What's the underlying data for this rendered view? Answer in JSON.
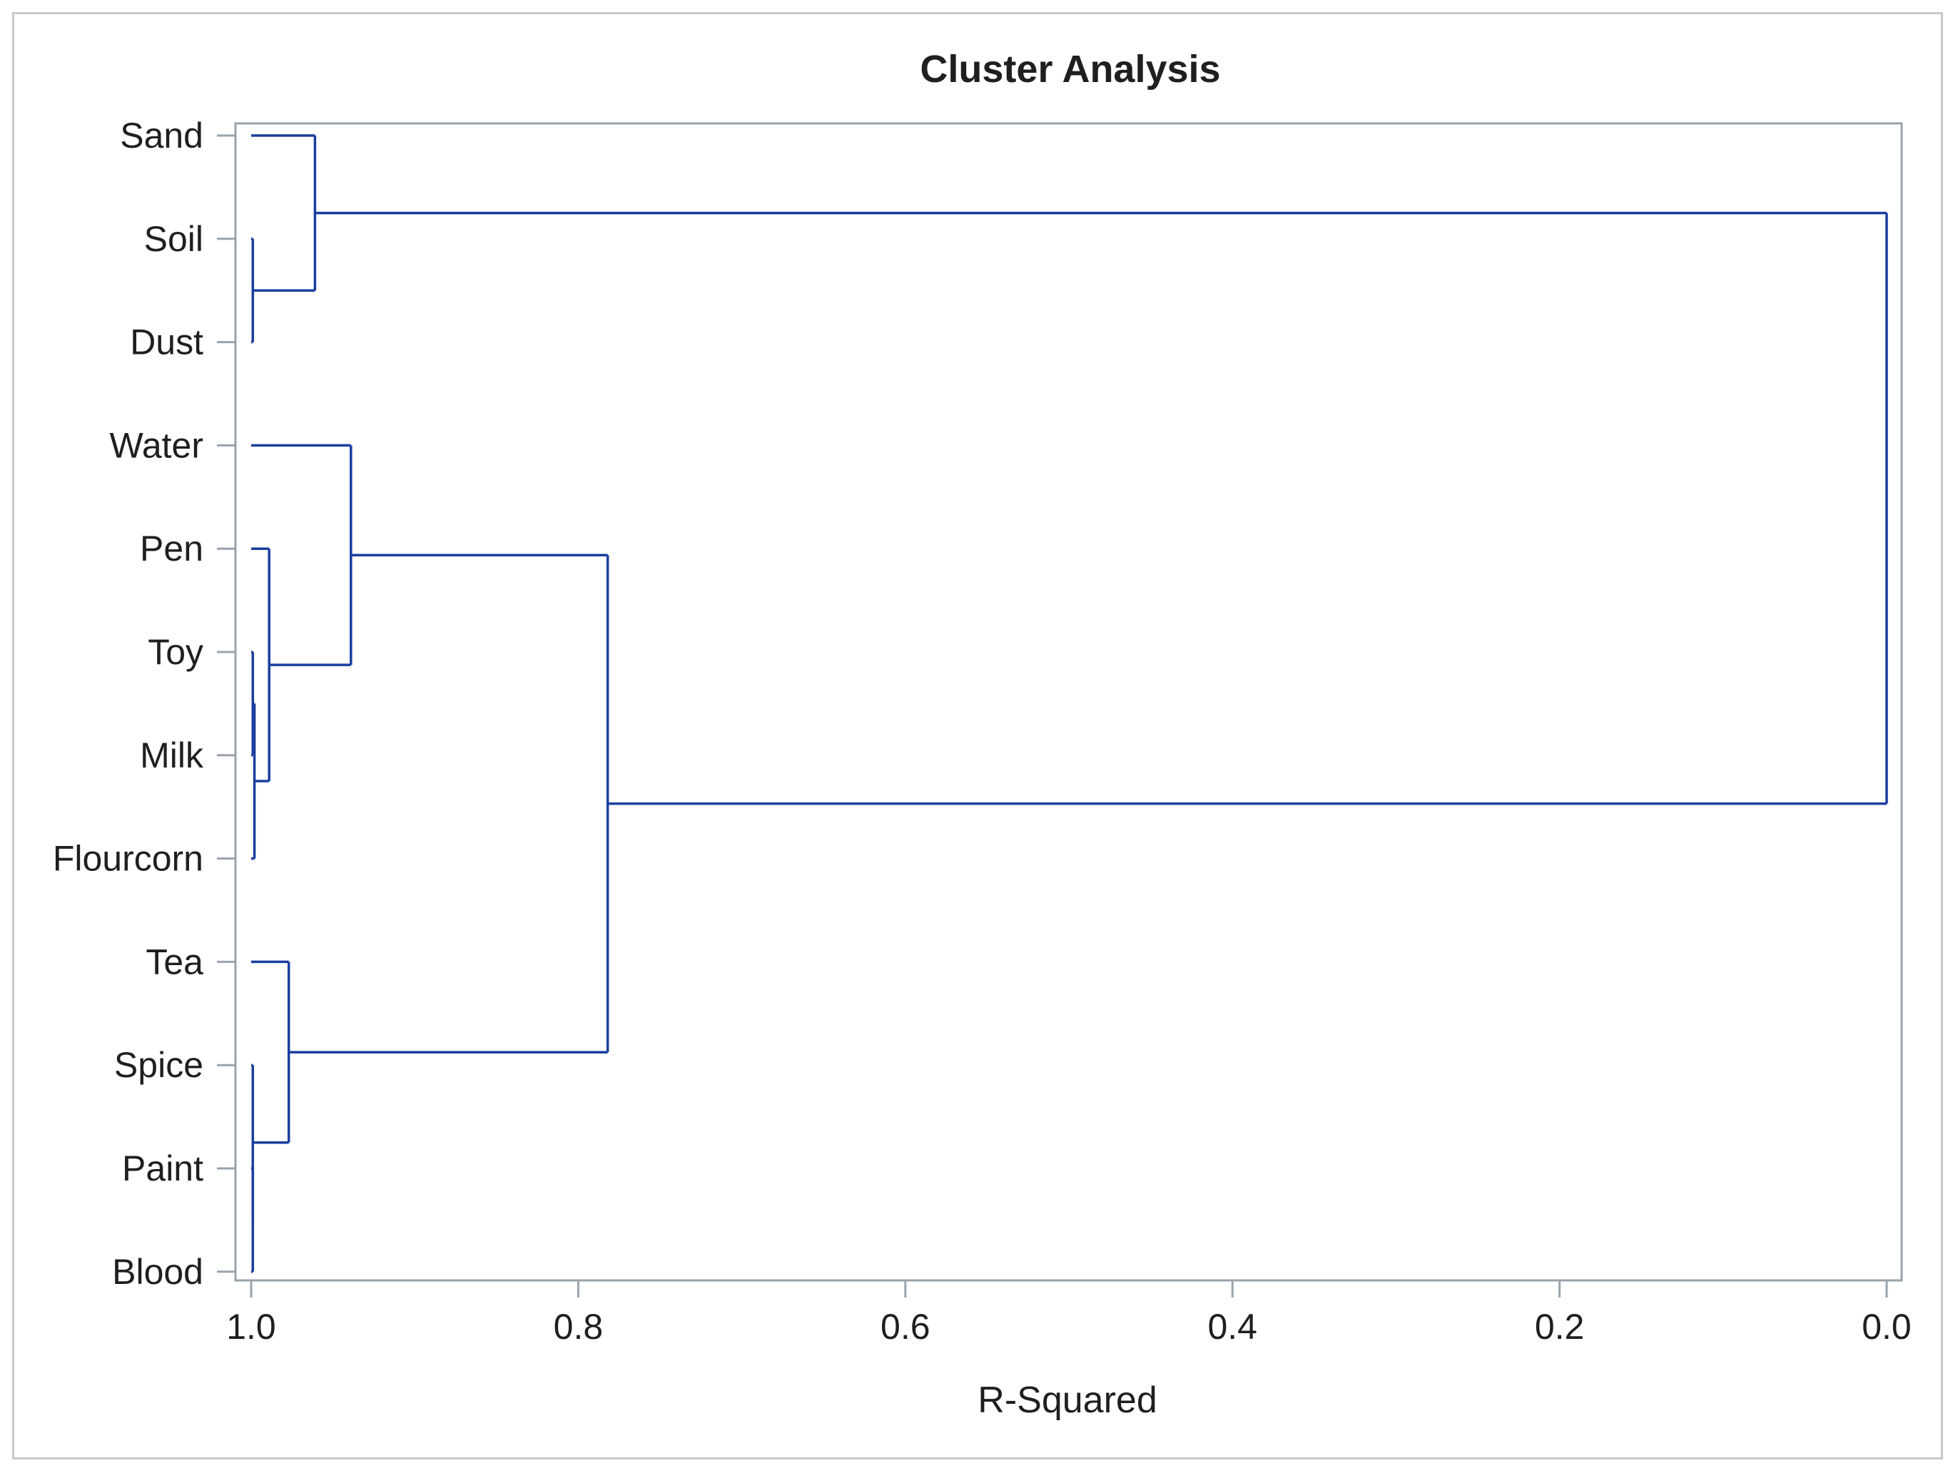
{
  "chart_data": {
    "type": "dendrogram",
    "title": "Cluster Analysis",
    "xlabel": "R-Squared",
    "xlim": [
      1.0,
      0.0
    ],
    "x_ticks": [
      "1.0",
      "0.8",
      "0.6",
      "0.4",
      "0.2",
      "0.0"
    ],
    "leaves": [
      "Sand",
      "Soil",
      "Dust",
      "Water",
      "Pen",
      "Toy",
      "Milk",
      "Flourcorn",
      "Tea",
      "Spice",
      "Paint",
      "Blood"
    ],
    "merges": [
      {
        "left": "Soil",
        "right": "Dust",
        "r_squared": 0.999
      },
      {
        "left": "Toy",
        "right": "Milk",
        "r_squared": 0.999
      },
      {
        "left": "Paint",
        "right": "Blood",
        "r_squared": 0.999
      },
      {
        "left": "Toy+Milk",
        "right": "Flourcorn",
        "r_squared": 0.998
      },
      {
        "left": "Pen",
        "right": "Toy+Milk+Flourcorn",
        "r_squared": 0.989
      },
      {
        "left": "Spice",
        "right": "Paint+Blood",
        "r_squared": 0.999
      },
      {
        "left": "Tea",
        "right": "Spice+Paint+Blood",
        "r_squared": 0.977
      },
      {
        "left": "Sand",
        "right": "Soil+Dust",
        "r_squared": 0.961
      },
      {
        "left": "Water",
        "right": "Pen+Toy+Milk+Flourcorn",
        "r_squared": 0.939
      },
      {
        "left": "Water+Pen+Toy+Milk+Flourcorn",
        "right": "Tea+Spice+Paint+Blood",
        "r_squared": 0.782
      },
      {
        "left": "Sand+Soil+Dust",
        "right": "Water+Pen+Toy+Milk+Flourcorn+Tea+Spice+Paint+Blood",
        "r_squared": 0.0
      }
    ],
    "colors": {
      "lines": "#1a3e9e",
      "axis": "#9aa3ab",
      "frame": "#c8c8c8"
    }
  }
}
